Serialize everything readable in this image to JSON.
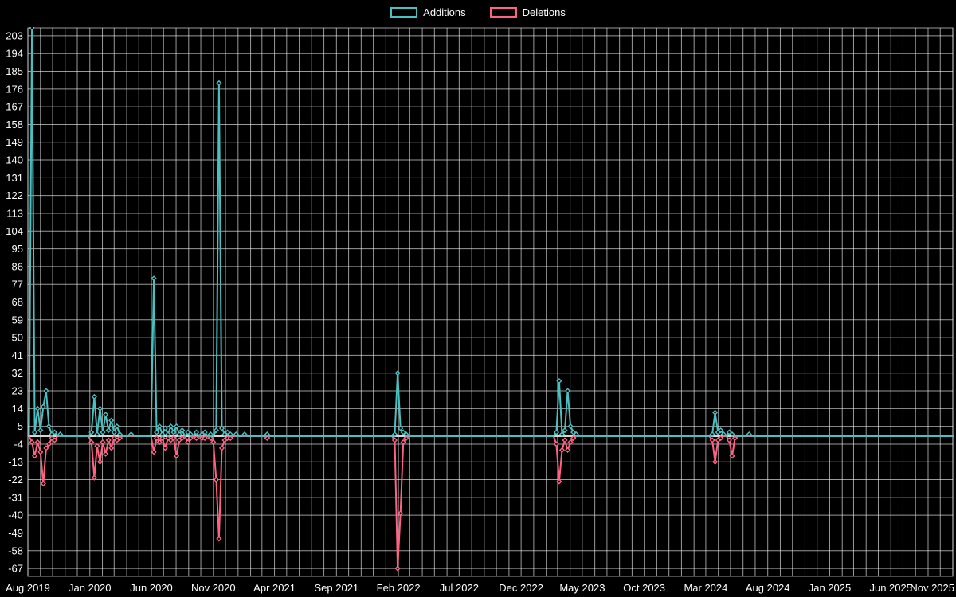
{
  "page": {
    "background": "#000000",
    "text_color": "#ffffff"
  },
  "legend": {
    "items": [
      {
        "label": "Additions",
        "color": "#4bc0c0"
      },
      {
        "label": "Deletions",
        "color": "#ff6384"
      }
    ]
  },
  "chart_data": {
    "type": "line",
    "title": "",
    "x_axis": {
      "tick_labels": [
        "Aug 2019",
        "Jan 2020",
        "Jun 2020",
        "Nov 2020",
        "Apr 2021",
        "Sep 2021",
        "Feb 2022",
        "Jul 2022",
        "Dec 2022",
        "May 2023",
        "Oct 2023",
        "Mar 2024",
        "Aug 2024",
        "Jan 2025",
        "Jun 2025",
        "Nov 2025"
      ],
      "start_month": "2019-08",
      "end_month": "2025-11",
      "months_per_label": 5
    },
    "y_axis": {
      "ticks": [
        203,
        194,
        185,
        176,
        167,
        158,
        149,
        140,
        131,
        122,
        113,
        104,
        95,
        86,
        77,
        68,
        59,
        50,
        41,
        32,
        23,
        14,
        5,
        -4,
        -13,
        -22,
        -31,
        -40,
        -49,
        -58,
        -67
      ],
      "min": -71,
      "max": 207
    },
    "grid": {
      "color": "rgba(255,255,255,0.6)",
      "zero_line_color": "#d6d6d6"
    },
    "baseline_value": 0,
    "week_start": "2019-08-04",
    "week_end": "2025-11-23",
    "series": [
      {
        "name": "Additions",
        "color": "#4bc0c0",
        "points": {
          "2019-08-11": 207,
          "2019-08-18": 2,
          "2019-08-25": 14,
          "2019-09-01": 3,
          "2019-09-08": 15,
          "2019-09-15": 23,
          "2019-09-22": 5,
          "2019-09-29": 1,
          "2019-10-06": 2,
          "2019-10-20": 1,
          "2020-01-05": 2,
          "2020-01-12": 20,
          "2020-01-19": 1,
          "2020-01-26": 14,
          "2020-02-02": 2,
          "2020-02-09": 11,
          "2020-02-16": 3,
          "2020-02-23": 8,
          "2020-03-01": 2,
          "2020-03-08": 5,
          "2020-03-15": 1,
          "2020-04-12": 1,
          "2020-06-07": 80,
          "2020-06-14": 2,
          "2020-06-21": 5,
          "2020-06-28": 1,
          "2020-07-05": 4,
          "2020-07-12": 1,
          "2020-07-19": 5,
          "2020-07-26": 2,
          "2020-08-02": 5,
          "2020-08-09": 1,
          "2020-08-16": 3,
          "2020-08-30": 2,
          "2020-09-06": 1,
          "2020-09-20": 2,
          "2020-10-04": 1,
          "2020-10-11": 2,
          "2020-10-25": 1,
          "2020-11-08": 3,
          "2020-11-15": 179,
          "2020-11-22": 4,
          "2020-11-29": 1,
          "2020-12-06": 2,
          "2020-12-13": 1,
          "2020-12-27": 1,
          "2021-01-17": 1,
          "2021-03-14": 1,
          "2022-01-23": 1,
          "2022-01-30": 32,
          "2022-02-06": 4,
          "2022-02-13": 2,
          "2022-02-20": 1,
          "2023-02-26": 2,
          "2023-03-05": 28,
          "2023-03-12": 1,
          "2023-03-19": 3,
          "2023-03-26": 23,
          "2023-04-02": 5,
          "2023-04-09": 2,
          "2023-04-16": 1,
          "2024-03-17": 1,
          "2024-03-24": 12,
          "2024-03-31": 2,
          "2024-04-07": 3,
          "2024-04-14": 1,
          "2024-04-28": 2,
          "2024-05-05": 1,
          "2024-06-16": 1
        }
      },
      {
        "name": "Deletions",
        "color": "#ff6384",
        "points": {
          "2019-08-11": -3,
          "2019-08-18": -10,
          "2019-08-25": -3,
          "2019-09-01": -8,
          "2019-09-08": -24,
          "2019-09-15": -6,
          "2019-09-22": -4,
          "2019-09-29": -1,
          "2019-10-06": -2,
          "2020-01-05": -3,
          "2020-01-12": -21,
          "2020-01-19": -5,
          "2020-01-26": -13,
          "2020-02-02": -3,
          "2020-02-09": -9,
          "2020-02-16": -2,
          "2020-02-23": -6,
          "2020-03-01": -1,
          "2020-03-08": -2,
          "2020-03-15": -1,
          "2020-06-07": -8,
          "2020-06-14": -1,
          "2020-06-21": -3,
          "2020-06-28": -1,
          "2020-07-05": -6,
          "2020-07-12": -1,
          "2020-07-19": -2,
          "2020-07-26": -1,
          "2020-08-02": -10,
          "2020-08-09": -2,
          "2020-08-16": -1,
          "2020-08-30": -3,
          "2020-09-06": -1,
          "2020-09-20": -1,
          "2020-10-04": -1,
          "2020-10-11": -1,
          "2020-10-25": -1,
          "2020-11-01": -3,
          "2020-11-08": -22,
          "2020-11-15": -52,
          "2020-11-22": -6,
          "2020-11-29": -2,
          "2020-12-06": -1,
          "2020-12-13": -1,
          "2021-03-14": -1,
          "2022-01-23": -2,
          "2022-01-30": -67,
          "2022-02-06": -39,
          "2022-02-13": -3,
          "2022-02-20": -1,
          "2023-02-26": -4,
          "2023-03-05": -23,
          "2023-03-12": -7,
          "2023-03-19": -2,
          "2023-03-26": -7,
          "2023-04-02": -3,
          "2023-04-09": -1,
          "2024-03-17": -2,
          "2024-03-24": -13,
          "2024-03-31": -2,
          "2024-04-07": -1,
          "2024-04-28": -2,
          "2024-05-05": -10,
          "2024-05-12": -1
        }
      }
    ]
  }
}
